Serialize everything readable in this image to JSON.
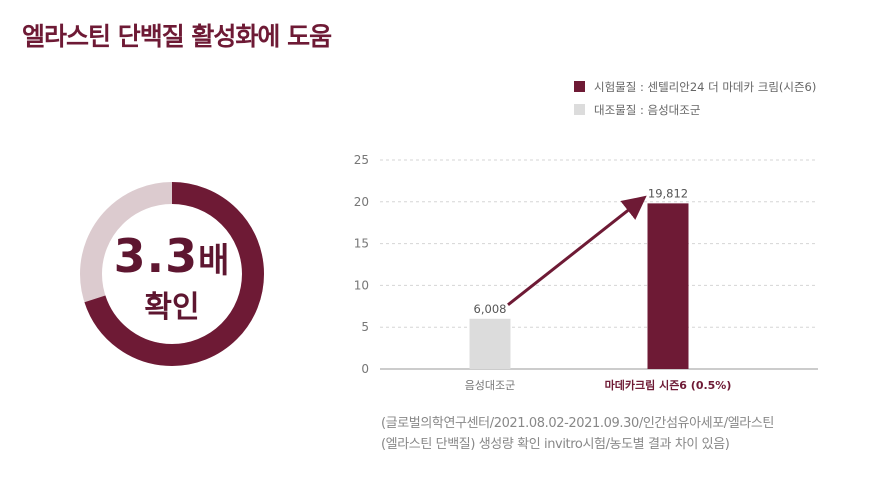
{
  "title": "엘라스틴 단백질 활성화에 도움",
  "highlight": {
    "value": "3.3",
    "unit": "배",
    "caption": "확인",
    "ring_fraction": 0.7,
    "colors": {
      "accent": "#6e1a35",
      "muted": "#dccbcf"
    }
  },
  "legend": [
    {
      "label": "시험물질 : 센텔리안24 더 마데카 크림(시즌6)",
      "color": "#6e1a35"
    },
    {
      "label": "대조물질 : 음성대조군",
      "color": "#dcdcdc"
    }
  ],
  "chart_data": {
    "type": "bar",
    "categories": [
      "음성대조군",
      "마데카크림 시즌6 (0.5%)"
    ],
    "values": [
      6.008,
      19.812
    ],
    "value_labels": [
      "6,008",
      "19,812"
    ],
    "colors": [
      "#dcdcdc",
      "#6e1a35"
    ],
    "ylim": [
      0,
      25
    ],
    "yticks": [
      "0",
      "5",
      "10",
      "15",
      "20",
      "25"
    ],
    "grid": true,
    "title": "",
    "xlabel": "",
    "ylabel": ""
  },
  "footnote": {
    "line1": "(글로벌의학연구센터/2021.08.02-2021.09.30/인간섬유아세포/엘라스틴",
    "line2": "(엘라스틴 단백질) 생성량 확인 invitro시험/농도별 결과 차이 있음)"
  }
}
